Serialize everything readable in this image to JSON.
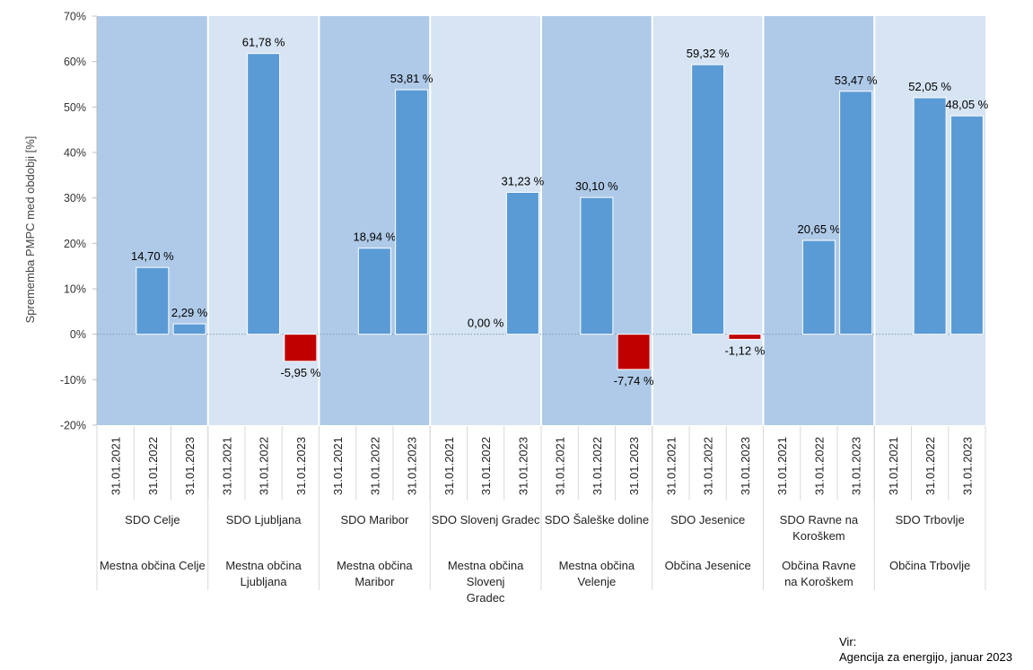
{
  "chart_data": {
    "type": "bar",
    "ylabel": "Sprememba PMPC med obdobji [%]",
    "ylim": [
      -20,
      70
    ],
    "y_ticks": [
      -20,
      -10,
      0,
      10,
      20,
      30,
      40,
      50,
      60,
      70
    ],
    "y_tick_suffix": "%",
    "grid": false,
    "dates": [
      "31.01.2021",
      "31.01.2022",
      "31.01.2023"
    ],
    "groups": [
      {
        "sdo": "SDO Celje",
        "obcina": "Mestna občina Celje",
        "values": [
          null,
          14.7,
          2.29
        ],
        "labels": [
          "",
          "14,70 %",
          "2,29 %"
        ]
      },
      {
        "sdo": "SDO Ljubljana",
        "obcina": "Mestna občina Ljubljana",
        "values": [
          null,
          61.78,
          -5.95
        ],
        "labels": [
          "",
          "61,78 %",
          "-5,95 %"
        ]
      },
      {
        "sdo": "SDO Maribor",
        "obcina": "Mestna občina Maribor",
        "values": [
          null,
          18.94,
          53.81
        ],
        "labels": [
          "",
          "18,94 %",
          "53,81 %"
        ]
      },
      {
        "sdo": "SDO Slovenj Gradec",
        "obcina": "Mestna občina Slovenj Gradec",
        "values": [
          null,
          0.0,
          31.23
        ],
        "labels": [
          "",
          "0,00 %",
          "31,23 %"
        ]
      },
      {
        "sdo": "SDO Šaleške doline",
        "obcina": "Mestna občina Velenje",
        "values": [
          null,
          30.1,
          -7.74
        ],
        "labels": [
          "",
          "30,10 %",
          "-7,74 %"
        ]
      },
      {
        "sdo": "SDO Jesenice",
        "obcina": "Občina Jesenice",
        "values": [
          null,
          59.32,
          -1.12
        ],
        "labels": [
          "",
          "59,32 %",
          "-1,12 %"
        ]
      },
      {
        "sdo": "SDO Ravne na Koroškem",
        "obcina": "Občina Ravne na Koroškem",
        "values": [
          null,
          20.65,
          53.47
        ],
        "labels": [
          "",
          "20,65 %",
          "53,47 %"
        ]
      },
      {
        "sdo": "SDO Trbovlje",
        "obcina": "Občina Trbovlje",
        "values": [
          null,
          52.05,
          48.05
        ],
        "labels": [
          "",
          "52,05 %",
          "48,05 %"
        ]
      }
    ],
    "colors": {
      "positive_bar": "#5B9BD5",
      "negative_bar": "#C00000",
      "band_dark": "#AFCAE8",
      "band_light": "#D6E4F3",
      "axis": "#BFBFBF"
    }
  },
  "source": {
    "label": "Vir:",
    "text": "Agencija za energijo, januar 2023"
  }
}
